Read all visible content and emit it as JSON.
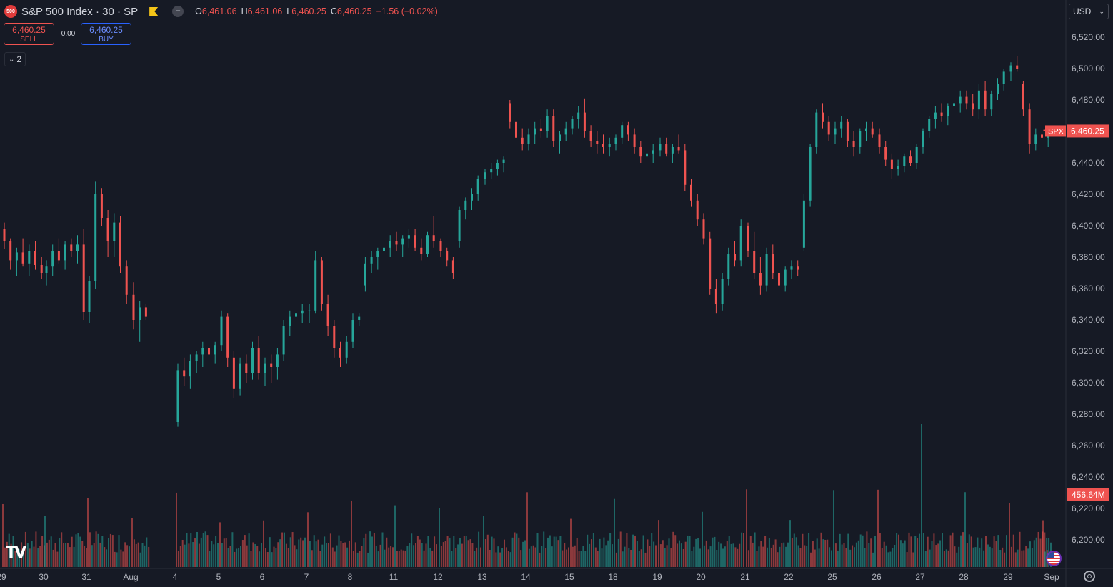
{
  "header": {
    "logo_text": "500",
    "title": "S&P 500 Index · 30 · SP",
    "open_label": "O",
    "open": "6,461.06",
    "high_label": "H",
    "high": "6,461.06",
    "low_label": "L",
    "low": "6,460.25",
    "close_label": "C",
    "close": "6,460.25",
    "change": "−1.56 (−0.02%)"
  },
  "trade": {
    "sell_price": "6,460.25",
    "sell_label": "SELL",
    "spread": "0.00",
    "buy_price": "6,460.25",
    "buy_label": "BUY"
  },
  "indicators_toggle": {
    "icon": "chevron-down-icon",
    "count": "2"
  },
  "currency": {
    "selected": "USD"
  },
  "price_axis": {
    "labels": [
      "6,520.00",
      "6,500.00",
      "6,480.00",
      "6,460.00",
      "6,440.00",
      "6,420.00",
      "6,400.00",
      "6,380.00",
      "6,360.00",
      "6,340.00",
      "6,320.00",
      "6,300.00",
      "6,280.00",
      "6,260.00",
      "6,240.00",
      "6,220.00",
      "6,200.00"
    ],
    "current_symbol": "SPX",
    "current_price": "6,460.25",
    "volume_label": "456.64M"
  },
  "time_axis": {
    "labels": [
      "29",
      "30",
      "31",
      "Aug",
      "4",
      "5",
      "6",
      "7",
      "8",
      "11",
      "12",
      "13",
      "14",
      "15",
      "18",
      "19",
      "20",
      "21",
      "22",
      "25",
      "26",
      "27",
      "28",
      "29",
      "Sep"
    ]
  },
  "colors": {
    "up": "#26a69a",
    "down": "#ef5350",
    "background": "#161a25",
    "axis_text": "#b2b5be"
  },
  "chart_data": {
    "type": "candlestick",
    "interval": "30",
    "symbol": "S&P 500 Index",
    "ylim": [
      6190,
      6530
    ],
    "sessions": [
      {
        "day": "29",
        "ohlc": [
          [
            6398,
            6402,
            6385,
            6390
          ],
          [
            6390,
            6392,
            6372,
            6378
          ],
          [
            6378,
            6386,
            6368,
            6383
          ],
          [
            6383,
            6392,
            6374,
            6376
          ],
          [
            6376,
            6388,
            6368,
            6384
          ],
          [
            6384,
            6390,
            6372,
            6375
          ],
          [
            6375,
            6380,
            6366,
            6370
          ]
        ]
      },
      {
        "day": "30",
        "ohlc": [
          [
            6370,
            6378,
            6362,
            6374
          ],
          [
            6374,
            6388,
            6368,
            6384
          ],
          [
            6384,
            6392,
            6376,
            6378
          ],
          [
            6378,
            6390,
            6372,
            6388
          ],
          [
            6388,
            6392,
            6380,
            6384
          ],
          [
            6384,
            6394,
            6376,
            6388
          ],
          [
            6388,
            6398,
            6340,
            6345
          ]
        ]
      },
      {
        "day": "31",
        "ohlc": [
          [
            6345,
            6368,
            6338,
            6365
          ],
          [
            6365,
            6428,
            6360,
            6420
          ],
          [
            6420,
            6424,
            6400,
            6405
          ],
          [
            6405,
            6410,
            6380,
            6390
          ],
          [
            6390,
            6408,
            6380,
            6402
          ],
          [
            6402,
            6406,
            6370,
            6374
          ],
          [
            6374,
            6378,
            6350,
            6356
          ]
        ]
      },
      {
        "day": "Aug",
        "ohlc": [
          [
            6356,
            6364,
            6334,
            6340
          ],
          [
            6340,
            6352,
            6326,
            6348
          ],
          [
            6348,
            6350,
            6340,
            6342
          ]
        ]
      },
      {
        "day": "4",
        "ohlc": [
          [
            6275,
            6312,
            6272,
            6308
          ],
          [
            6308,
            6316,
            6298,
            6304
          ],
          [
            6304,
            6318,
            6296,
            6314
          ],
          [
            6314,
            6320,
            6306,
            6318
          ],
          [
            6318,
            6326,
            6310,
            6322
          ],
          [
            6322,
            6328,
            6314,
            6318
          ],
          [
            6318,
            6326,
            6312,
            6324
          ]
        ]
      },
      {
        "day": "5",
        "ohlc": [
          [
            6324,
            6346,
            6320,
            6342
          ],
          [
            6342,
            6344,
            6310,
            6316
          ],
          [
            6316,
            6320,
            6290,
            6296
          ],
          [
            6296,
            6316,
            6292,
            6312
          ],
          [
            6312,
            6318,
            6300,
            6306
          ],
          [
            6306,
            6326,
            6302,
            6322
          ],
          [
            6322,
            6330,
            6302,
            6306
          ]
        ]
      },
      {
        "day": "6",
        "ohlc": [
          [
            6306,
            6316,
            6298,
            6312
          ],
          [
            6312,
            6318,
            6300,
            6310
          ],
          [
            6310,
            6322,
            6302,
            6318
          ],
          [
            6318,
            6340,
            6314,
            6336
          ],
          [
            6336,
            6346,
            6330,
            6342
          ],
          [
            6342,
            6350,
            6336,
            6344
          ],
          [
            6344,
            6350,
            6338,
            6346
          ]
        ]
      },
      {
        "day": "7",
        "ohlc": [
          [
            6346,
            6350,
            6338,
            6346
          ],
          [
            6346,
            6384,
            6344,
            6378
          ],
          [
            6378,
            6380,
            6346,
            6350
          ],
          [
            6350,
            6356,
            6330,
            6336
          ],
          [
            6336,
            6340,
            6316,
            6322
          ],
          [
            6322,
            6326,
            6310,
            6316
          ],
          [
            6316,
            6330,
            6312,
            6326
          ]
        ]
      },
      {
        "day": "8",
        "ohlc": [
          [
            6326,
            6344,
            6322,
            6340
          ],
          [
            6340,
            6344,
            6336,
            6342
          ],
          [
            6362,
            6380,
            6358,
            6376
          ],
          [
            6376,
            6384,
            6370,
            6380
          ],
          [
            6380,
            6386,
            6372,
            6384
          ],
          [
            6384,
            6392,
            6376,
            6386
          ],
          [
            6386,
            6394,
            6380,
            6390
          ]
        ]
      },
      {
        "day": "11",
        "ohlc": [
          [
            6390,
            6396,
            6384,
            6388
          ],
          [
            6388,
            6394,
            6380,
            6392
          ],
          [
            6392,
            6398,
            6386,
            6394
          ],
          [
            6394,
            6398,
            6384,
            6386
          ],
          [
            6386,
            6392,
            6378,
            6382
          ],
          [
            6382,
            6396,
            6380,
            6394
          ],
          [
            6394,
            6406,
            6386,
            6390
          ]
        ]
      },
      {
        "day": "12",
        "ohlc": [
          [
            6390,
            6392,
            6380,
            6384
          ],
          [
            6384,
            6386,
            6374,
            6378
          ],
          [
            6378,
            6380,
            6366,
            6370
          ],
          [
            6390,
            6412,
            6386,
            6410
          ],
          [
            6410,
            6418,
            6404,
            6416
          ],
          [
            6416,
            6424,
            6410,
            6420
          ],
          [
            6420,
            6432,
            6416,
            6430
          ]
        ]
      },
      {
        "day": "13",
        "ohlc": [
          [
            6430,
            6436,
            6426,
            6434
          ],
          [
            6434,
            6440,
            6430,
            6436
          ],
          [
            6436,
            6442,
            6432,
            6440
          ],
          [
            6440,
            6444,
            6434,
            6442
          ],
          [
            6478,
            6480,
            6462,
            6466
          ],
          [
            6466,
            6470,
            6452,
            6456
          ],
          [
            6456,
            6462,
            6448,
            6452
          ]
        ]
      },
      {
        "day": "14",
        "ohlc": [
          [
            6452,
            6462,
            6448,
            6458
          ],
          [
            6458,
            6466,
            6452,
            6462
          ],
          [
            6462,
            6468,
            6456,
            6460
          ],
          [
            6460,
            6474,
            6456,
            6470
          ],
          [
            6470,
            6474,
            6450,
            6454
          ],
          [
            6454,
            6460,
            6446,
            6458
          ],
          [
            6458,
            6466,
            6454,
            6462
          ]
        ]
      },
      {
        "day": "15",
        "ohlc": [
          [
            6462,
            6470,
            6458,
            6468
          ],
          [
            6468,
            6476,
            6462,
            6472
          ],
          [
            6472,
            6481,
            6456,
            6460
          ],
          [
            6460,
            6464,
            6450,
            6454
          ],
          [
            6454,
            6460,
            6446,
            6452
          ],
          [
            6452,
            6458,
            6446,
            6450
          ],
          [
            6450,
            6456,
            6444,
            6452
          ]
        ]
      },
      {
        "day": "18",
        "ohlc": [
          [
            6452,
            6458,
            6448,
            6456
          ],
          [
            6456,
            6466,
            6452,
            6464
          ],
          [
            6464,
            6466,
            6454,
            6458
          ],
          [
            6458,
            6462,
            6446,
            6450
          ],
          [
            6450,
            6454,
            6440,
            6444
          ],
          [
            6444,
            6450,
            6438,
            6446
          ],
          [
            6446,
            6452,
            6440,
            6448
          ]
        ]
      },
      {
        "day": "19",
        "ohlc": [
          [
            6448,
            6456,
            6444,
            6452
          ],
          [
            6452,
            6456,
            6444,
            6446
          ],
          [
            6446,
            6452,
            6440,
            6450
          ],
          [
            6450,
            6458,
            6446,
            6448
          ],
          [
            6448,
            6452,
            6422,
            6426
          ],
          [
            6426,
            6430,
            6412,
            6416
          ],
          [
            6416,
            6420,
            6400,
            6404
          ]
        ]
      },
      {
        "day": "20",
        "ohlc": [
          [
            6404,
            6408,
            6388,
            6392
          ],
          [
            6392,
            6396,
            6356,
            6360
          ],
          [
            6360,
            6366,
            6344,
            6350
          ],
          [
            6350,
            6370,
            6346,
            6366
          ],
          [
            6366,
            6386,
            6362,
            6382
          ],
          [
            6382,
            6390,
            6374,
            6378
          ],
          [
            6378,
            6404,
            6374,
            6400
          ]
        ]
      },
      {
        "day": "21",
        "ohlc": [
          [
            6400,
            6402,
            6380,
            6384
          ],
          [
            6384,
            6396,
            6366,
            6370
          ],
          [
            6370,
            6380,
            6356,
            6362
          ],
          [
            6362,
            6386,
            6358,
            6382
          ],
          [
            6382,
            6388,
            6366,
            6370
          ],
          [
            6370,
            6376,
            6356,
            6362
          ],
          [
            6362,
            6374,
            6358,
            6372
          ]
        ]
      },
      {
        "day": "22",
        "ohlc": [
          [
            6372,
            6378,
            6366,
            6374
          ],
          [
            6374,
            6378,
            6368,
            6372
          ],
          [
            6386,
            6420,
            6384,
            6416
          ],
          [
            6416,
            6452,
            6412,
            6450
          ],
          [
            6450,
            6474,
            6446,
            6472
          ],
          [
            6472,
            6478,
            6462,
            6466
          ],
          [
            6466,
            6470,
            6454,
            6458
          ]
        ]
      },
      {
        "day": "25",
        "ohlc": [
          [
            6458,
            6466,
            6452,
            6462
          ],
          [
            6462,
            6470,
            6456,
            6466
          ],
          [
            6466,
            6468,
            6450,
            6454
          ],
          [
            6454,
            6460,
            6444,
            6450
          ],
          [
            6450,
            6462,
            6446,
            6460
          ],
          [
            6460,
            6466,
            6454,
            6462
          ],
          [
            6462,
            6466,
            6456,
            6458
          ]
        ]
      },
      {
        "day": "26",
        "ohlc": [
          [
            6458,
            6462,
            6446,
            6450
          ],
          [
            6450,
            6454,
            6438,
            6442
          ],
          [
            6442,
            6446,
            6430,
            6436
          ],
          [
            6436,
            6442,
            6432,
            6438
          ],
          [
            6438,
            6446,
            6434,
            6444
          ],
          [
            6444,
            6448,
            6438,
            6440
          ],
          [
            6440,
            6452,
            6436,
            6450
          ]
        ]
      },
      {
        "day": "27",
        "ohlc": [
          [
            6450,
            6462,
            6446,
            6460
          ],
          [
            6460,
            6470,
            6456,
            6468
          ],
          [
            6468,
            6476,
            6462,
            6472
          ],
          [
            6472,
            6478,
            6466,
            6470
          ],
          [
            6470,
            6478,
            6464,
            6476
          ],
          [
            6476,
            6482,
            6470,
            6478
          ],
          [
            6478,
            6486,
            6472,
            6482
          ]
        ]
      },
      {
        "day": "28",
        "ohlc": [
          [
            6482,
            6486,
            6474,
            6478
          ],
          [
            6478,
            6484,
            6470,
            6474
          ],
          [
            6474,
            6490,
            6468,
            6486
          ],
          [
            6486,
            6492,
            6470,
            6474
          ],
          [
            6474,
            6486,
            6470,
            6484
          ],
          [
            6484,
            6494,
            6480,
            6490
          ],
          [
            6490,
            6500,
            6486,
            6498
          ]
        ]
      },
      {
        "day": "29",
        "ohlc": [
          [
            6498,
            6504,
            6492,
            6502
          ],
          [
            6502,
            6508,
            6498,
            6500
          ],
          [
            6490,
            6492,
            6470,
            6474
          ],
          [
            6474,
            6478,
            6446,
            6452
          ],
          [
            6452,
            6462,
            6448,
            6458
          ],
          [
            6458,
            6464,
            6450,
            6456
          ],
          [
            6456,
            6462,
            6450,
            6460
          ]
        ]
      },
      {
        "day": "Sep",
        "ohlc": [
          [
            6461.06,
            6461.06,
            6460.25,
            6460.25
          ]
        ]
      }
    ],
    "volume_last": "456.64M"
  }
}
